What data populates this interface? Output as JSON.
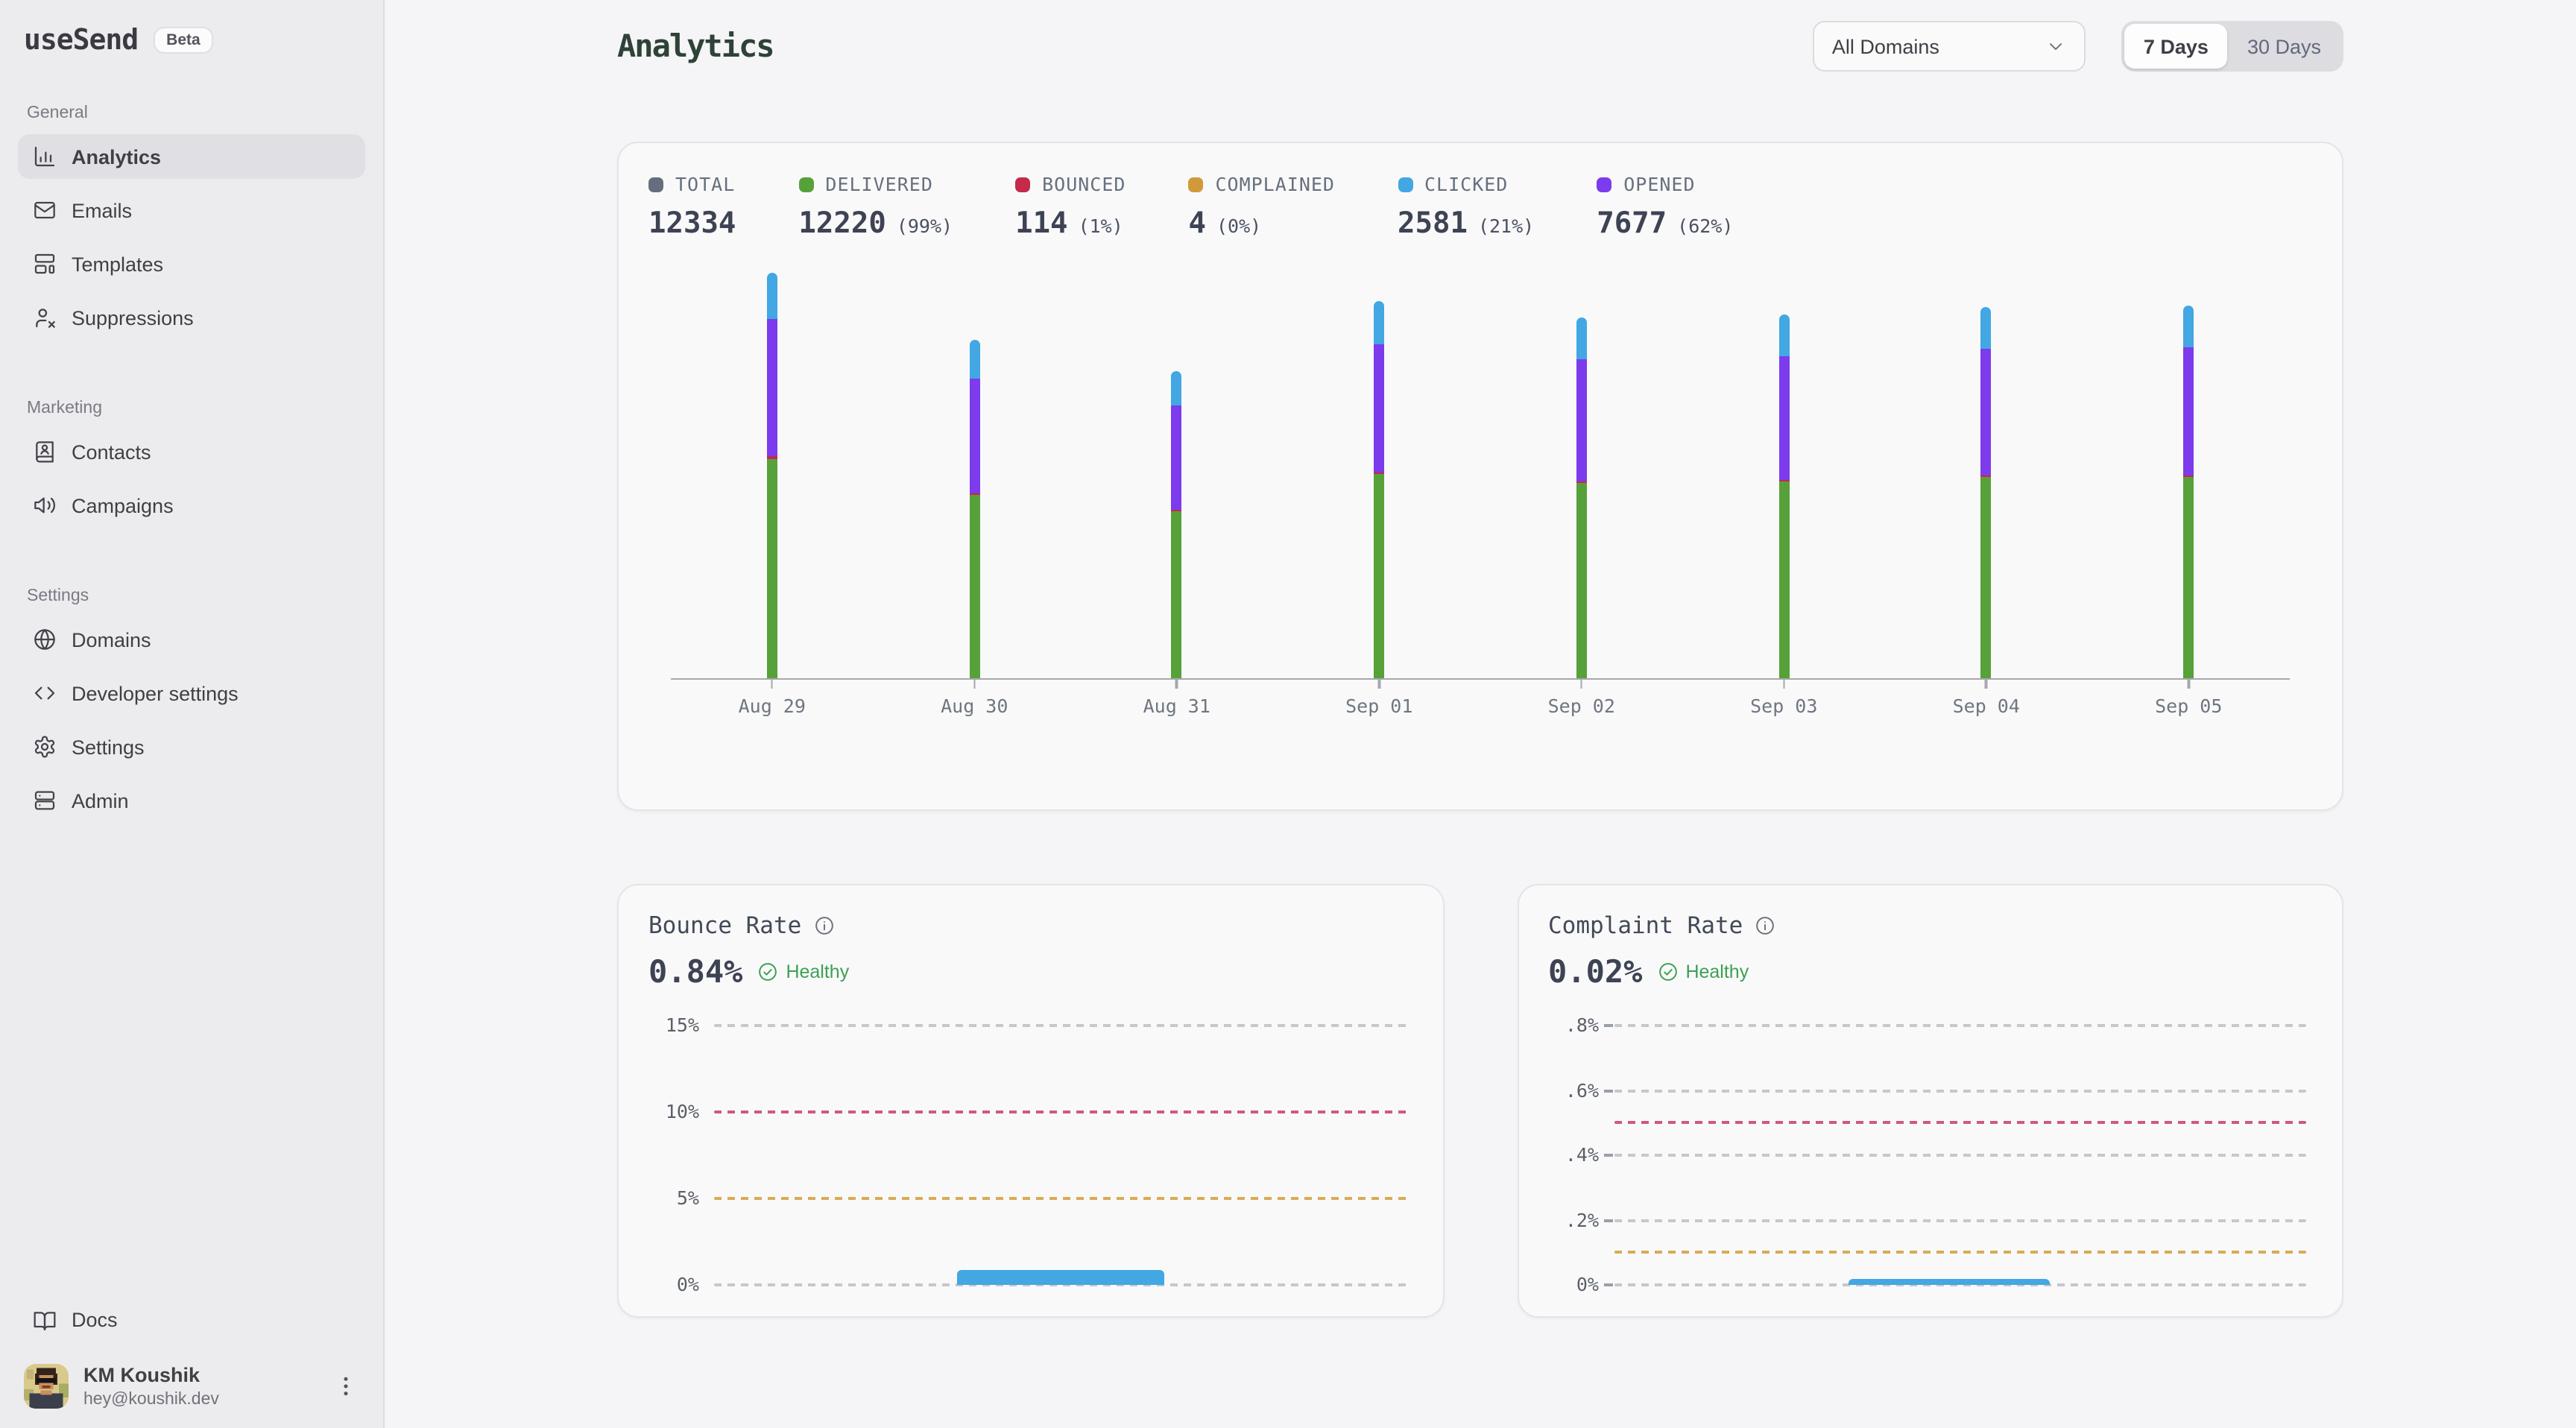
{
  "colors": {
    "slate": "#636e7e",
    "green": "#57a13a",
    "red": "#c52a4b",
    "amber": "#d1993b",
    "blue": "#42a7e2",
    "purple": "#7c3bec",
    "healthy": "#3ca052",
    "grid_gray": "#c7c7cc",
    "grid_red": "#ce5a7c",
    "grid_amber": "#d8ab56",
    "heading": "#2f4238"
  },
  "sidebar": {
    "logo": "useSend",
    "badge": "Beta",
    "sections": [
      {
        "label": "General",
        "items": [
          {
            "label": "Analytics",
            "icon": "bar-chart",
            "active": true
          },
          {
            "label": "Emails",
            "icon": "mail",
            "active": false
          },
          {
            "label": "Templates",
            "icon": "layout-template",
            "active": false
          },
          {
            "label": "Suppressions",
            "icon": "user-x",
            "active": false
          }
        ]
      },
      {
        "label": "Marketing",
        "items": [
          {
            "label": "Contacts",
            "icon": "book-user",
            "active": false
          },
          {
            "label": "Campaigns",
            "icon": "megaphone",
            "active": false
          }
        ]
      },
      {
        "label": "Settings",
        "items": [
          {
            "label": "Domains",
            "icon": "globe",
            "active": false
          },
          {
            "label": "Developer settings",
            "icon": "code",
            "active": false
          },
          {
            "label": "Settings",
            "icon": "gear",
            "active": false
          },
          {
            "label": "Admin",
            "icon": "server",
            "active": false
          }
        ]
      }
    ],
    "footer_link": {
      "label": "Docs",
      "icon": "book-open"
    },
    "user": {
      "name": "KM Koushik",
      "email": "hey@koushik.dev"
    }
  },
  "header": {
    "title": "Analytics",
    "domain_filter": "All Domains",
    "range_options": [
      "7 Days",
      "30 Days"
    ],
    "selected_range": "7 Days"
  },
  "stats": [
    {
      "label": "TOTAL",
      "value": "12334",
      "pct": null,
      "color_key": "slate"
    },
    {
      "label": "DELIVERED",
      "value": "12220",
      "pct": "(99%)",
      "color_key": "green"
    },
    {
      "label": "BOUNCED",
      "value": "114",
      "pct": "(1%)",
      "color_key": "red"
    },
    {
      "label": "COMPLAINED",
      "value": "4",
      "pct": "(0%)",
      "color_key": "amber"
    },
    {
      "label": "CLICKED",
      "value": "2581",
      "pct": "(21%)",
      "color_key": "blue"
    },
    {
      "label": "OPENED",
      "value": "7677",
      "pct": "(62%)",
      "color_key": "purple"
    }
  ],
  "chart_data": [
    {
      "name": "email-volume-by-day",
      "type": "bar",
      "stacked": true,
      "categories": [
        "Aug 29",
        "Aug 30",
        "Aug 31",
        "Sep 01",
        "Sep 02",
        "Sep 03",
        "Sep 04",
        "Sep 05"
      ],
      "series": [
        {
          "name": "Delivered",
          "color_key": "green",
          "values": [
            1712,
            1427,
            1297,
            1590,
            1521,
            1533,
            1568,
            1572
          ]
        },
        {
          "name": "Bounced",
          "color_key": "red",
          "values": [
            16,
            13,
            12,
            15,
            14,
            14,
            15,
            15
          ]
        },
        {
          "name": "Opened",
          "color_key": "purple",
          "values": [
            1074,
            896,
            815,
            999,
            955,
            963,
            985,
            990
          ]
        },
        {
          "name": "Clicked",
          "color_key": "blue",
          "values": [
            361,
            301,
            274,
            336,
            321,
            324,
            331,
            333
          ]
        }
      ],
      "legend_position": "top",
      "grid": false
    },
    {
      "name": "bounce-rate",
      "type": "bar",
      "title": "Bounce Rate",
      "value": "0.84%",
      "status": "Healthy",
      "ylim": [
        0,
        15
      ],
      "has_ticks": false,
      "gridlines": [
        {
          "label": "15%",
          "value": 15,
          "style": "gray"
        },
        {
          "label": "10%",
          "value": 10,
          "style": "red"
        },
        {
          "label": "5%",
          "value": 5,
          "style": "amber"
        },
        {
          "label": "0%",
          "value": 0,
          "style": "gray"
        }
      ],
      "bar": {
        "value": 0.84,
        "left_pct": 35,
        "width_pct": 30,
        "color_key": "blue"
      }
    },
    {
      "name": "complaint-rate",
      "type": "bar",
      "title": "Complaint Rate",
      "value": "0.02%",
      "status": "Healthy",
      "ylim": [
        0,
        0.8
      ],
      "has_ticks": true,
      "gridlines": [
        {
          "label": ".8%",
          "value": 0.8,
          "style": "gray"
        },
        {
          "label": ".6%",
          "value": 0.6,
          "style": "gray"
        },
        {
          "label": null,
          "value": 0.5,
          "style": "red"
        },
        {
          "label": ".4%",
          "value": 0.4,
          "style": "gray"
        },
        {
          "label": ".2%",
          "value": 0.2,
          "style": "gray"
        },
        {
          "label": null,
          "value": 0.1,
          "style": "amber"
        },
        {
          "label": "0%",
          "value": 0,
          "style": "gray"
        }
      ],
      "bar": {
        "value": 0.02,
        "left_pct": 34,
        "width_pct": 29,
        "color_key": "blue"
      }
    }
  ]
}
